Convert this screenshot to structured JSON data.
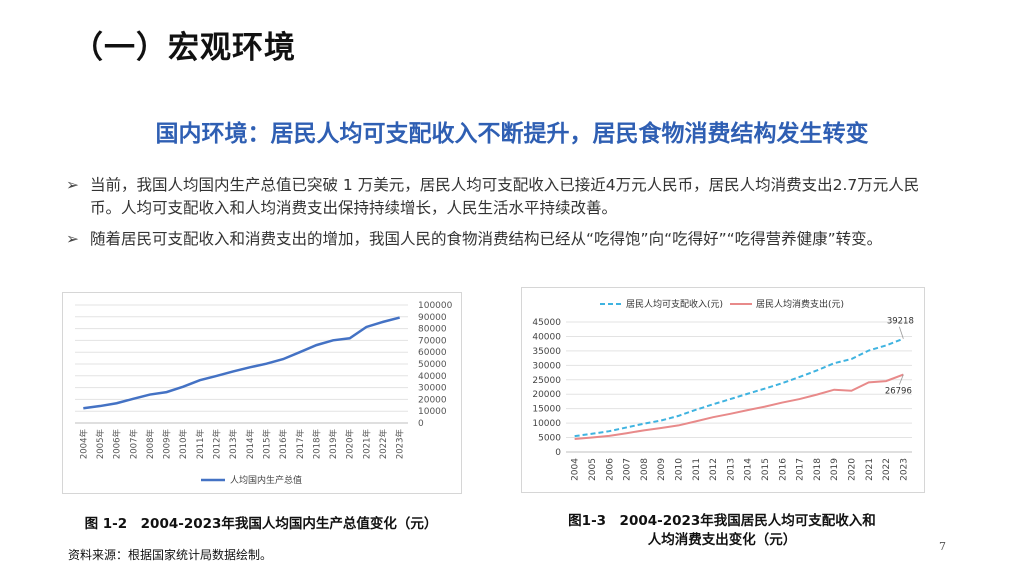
{
  "slide": {
    "title": "（一）宏观环境",
    "subtitle": "国内环境：居民人均可支配收入不断提升，居民食物消费结构发生转变",
    "bullets": [
      {
        "mark": "➢",
        "text": "当前，我国人均国内生产总值已突破 1 万美元，居民人均可支配收入已接近4万元人民币，居民人均消费支出2.7万元人民币。人均可支配收入和人均消费支出保持持续增长，人民生活水平持续改善。"
      },
      {
        "mark": "➢",
        "text": "随着居民可支配收入和消费支出的增加，我国人民的食物消费结构已经从“吃得饱”向“吃得好”“吃得营养健康”转变。"
      }
    ],
    "caption1": "图 1-2　2004-2023年我国人均国内生产总值变化（元）",
    "caption2_line1": "图1-3　2004-2023年我国居民人均可支配收入和",
    "caption2_line2": "人均消费支出变化（元）",
    "source": "资料来源：根据国家统计局数据绘制。",
    "page_number": "7"
  },
  "chart_data": [
    {
      "type": "line",
      "title": "",
      "categories": [
        "2004年",
        "2005年",
        "2006年",
        "2007年",
        "2008年",
        "2009年",
        "2010年",
        "2011年",
        "2012年",
        "2013年",
        "2014年",
        "2015年",
        "2016年",
        "2017年",
        "2018年",
        "2019年",
        "2020年",
        "2021年",
        "2022年",
        "2023年"
      ],
      "series": [
        {
          "name": "人均国内生产总值",
          "color": "#4472c4",
          "values": [
            12487,
            14368,
            16738,
            20494,
            24100,
            26180,
            30808,
            36302,
            39874,
            43684,
            47173,
            50237,
            54139,
            60014,
            66006,
            70078,
            71828,
            81370,
            85698,
            89358
          ]
        }
      ],
      "ylim": [
        0,
        100000
      ],
      "yticks": [
        "100000",
        "90000",
        "80000",
        "70000",
        "60000",
        "50000",
        "40000",
        "30000",
        "20000",
        "10000",
        "0"
      ],
      "y_axis_side": "right",
      "legend": "bottom",
      "grid": true
    },
    {
      "type": "line",
      "title": "",
      "categories": [
        "2004",
        "2005",
        "2006",
        "2007",
        "2008",
        "2009",
        "2010",
        "2011",
        "2012",
        "2013",
        "2014",
        "2015",
        "2016",
        "2017",
        "2018",
        "2019",
        "2020",
        "2021",
        "2022",
        "2023"
      ],
      "series": [
        {
          "name": "居民人均可支配收入(元)",
          "color": "#3fb3e0",
          "dashed": true,
          "values": [
            5500,
            6300,
            7200,
            8500,
            9800,
            10900,
            12500,
            14600,
            16510,
            18311,
            20167,
            21966,
            23821,
            25974,
            28228,
            30733,
            32189,
            35128,
            36883,
            39218
          ]
        },
        {
          "name": "居民人均消费支出(元)",
          "color": "#e88a8a",
          "dashed": false,
          "values": [
            4500,
            5000,
            5600,
            6500,
            7500,
            8300,
            9200,
            10600,
            12054,
            13220,
            14491,
            15712,
            17111,
            18322,
            19853,
            21559,
            21210,
            24100,
            24538,
            26796
          ]
        }
      ],
      "data_labels": [
        "39218",
        "26796"
      ],
      "ylim": [
        0,
        45000
      ],
      "yticks": [
        "45000",
        "40000",
        "35000",
        "30000",
        "25000",
        "20000",
        "15000",
        "10000",
        "5000",
        "0"
      ],
      "legend": "top",
      "grid": true
    }
  ]
}
